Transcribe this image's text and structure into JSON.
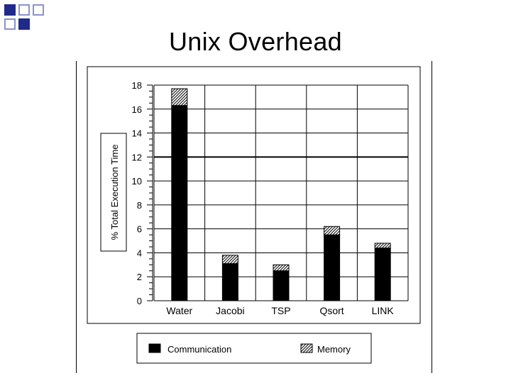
{
  "slide": {
    "title": "Unix Overhead"
  },
  "colors": {
    "accent_dark": "#1f2a8a",
    "accent_light": "#8a93c8"
  },
  "chart_data": {
    "type": "bar",
    "stacked": true,
    "categories": [
      "Water",
      "Jacobi",
      "TSP",
      "Qsort",
      "LINK"
    ],
    "series": [
      {
        "name": "Communication",
        "values": [
          16.3,
          3.1,
          2.5,
          5.5,
          4.4
        ],
        "pattern": "solid-black"
      },
      {
        "name": "Memory",
        "values": [
          1.4,
          0.7,
          0.5,
          0.7,
          0.4
        ],
        "pattern": "hatched"
      }
    ],
    "ylabel": "% Total Execution Time",
    "ylim": [
      0,
      18
    ],
    "yticks": [
      0,
      2,
      4,
      6,
      8,
      10,
      12,
      14,
      16,
      18
    ],
    "grid": true,
    "legend_position": "bottom"
  }
}
